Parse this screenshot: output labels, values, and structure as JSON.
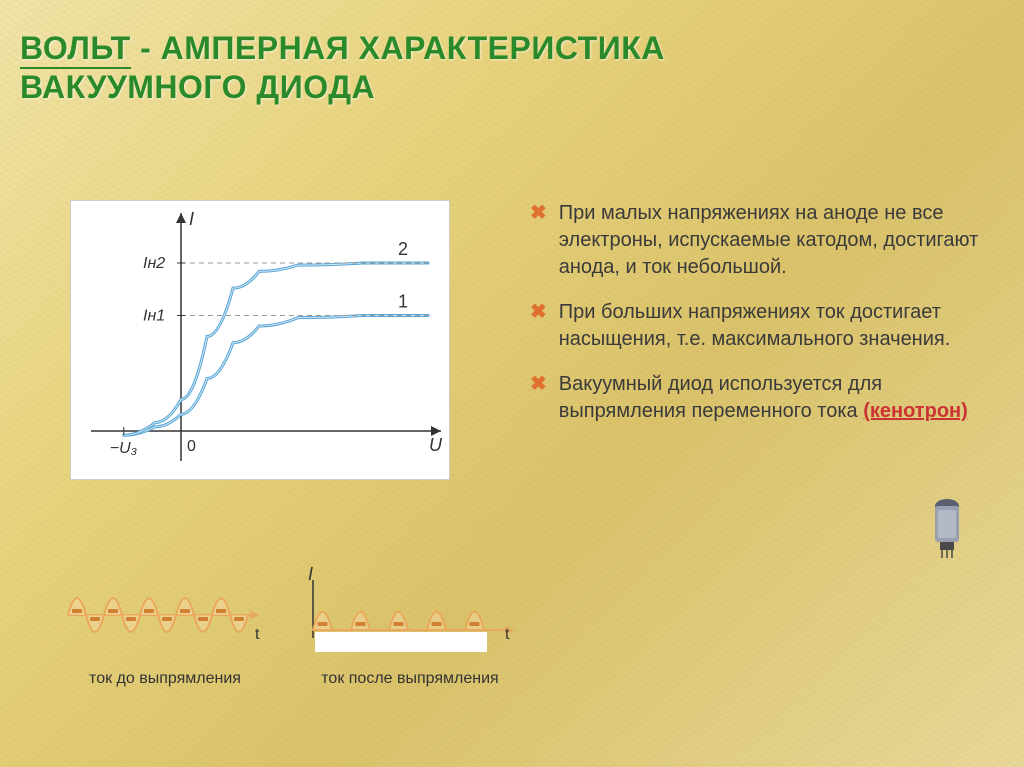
{
  "title": {
    "line1_underlined": "ВОЛЬТ",
    "line1_rest": " - АМПЕРНАЯ ХАРАКТЕРИСТИКА",
    "line2": "ВАКУУМНОГО ДИОДА",
    "color": "#2a8a2a",
    "fontsize": 32
  },
  "chart": {
    "type": "line",
    "background_color": "#ffffff",
    "axes": {
      "x_label": "U",
      "y_label": "I",
      "origin_label": "0",
      "neg_x_tick": "−U₃",
      "y_ticks": [
        "Iн1",
        "Iн2"
      ],
      "axis_color": "#333333"
    },
    "curves": [
      {
        "label": "1",
        "color": "#5aa5d6",
        "width": 3,
        "saturation_level": 0.55,
        "points": [
          [
            -0.22,
            -0.02
          ],
          [
            -0.1,
            0.02
          ],
          [
            0,
            0.08
          ],
          [
            0.1,
            0.25
          ],
          [
            0.2,
            0.42
          ],
          [
            0.3,
            0.5
          ],
          [
            0.45,
            0.54
          ],
          [
            0.7,
            0.55
          ],
          [
            0.95,
            0.55
          ]
        ]
      },
      {
        "label": "2",
        "color": "#5aa5d6",
        "width": 3,
        "saturation_level": 0.8,
        "points": [
          [
            -0.22,
            -0.02
          ],
          [
            -0.1,
            0.04
          ],
          [
            0,
            0.15
          ],
          [
            0.1,
            0.45
          ],
          [
            0.2,
            0.68
          ],
          [
            0.3,
            0.76
          ],
          [
            0.45,
            0.79
          ],
          [
            0.7,
            0.8
          ],
          [
            0.95,
            0.8
          ]
        ]
      }
    ],
    "dash_color": "#999999"
  },
  "bullets": [
    {
      "text": "При малых напряжениях на аноде не все электроны, испускаемые катодом, достигают анода, и ток небольшой."
    },
    {
      "text": "При больших напряжениях ток достигает насыщения, т.е. максимального значения."
    },
    {
      "text_before": "Вакуумный диод используется для выпрямления переменного тока ",
      "link": "(кенотрон)"
    }
  ],
  "bullet_style": {
    "marker": "✖",
    "marker_color": "#e07030",
    "fontsize": 20,
    "text_color": "#3a3a3a"
  },
  "waves": {
    "before": {
      "label": "ток до выпрямления",
      "type": "sine-full",
      "t_label": "t",
      "peak_color": "#e9a85a",
      "fill_color": "#f5d7a3",
      "axis_color": "#e9a85a",
      "cycles": 5
    },
    "after": {
      "label": "ток после выпрямления",
      "type": "sine-half-rectified",
      "t_label": "t",
      "I_label": "I",
      "peak_color": "#e9a85a",
      "fill_color": "#f5d7a3",
      "axis_color": "#e9a85a",
      "cycles": 5
    },
    "dot_color": "#d08030"
  },
  "tube": {
    "body_color": "#9aa0b0",
    "top_color": "#5a6070",
    "pin_color": "#4a4a4a"
  }
}
